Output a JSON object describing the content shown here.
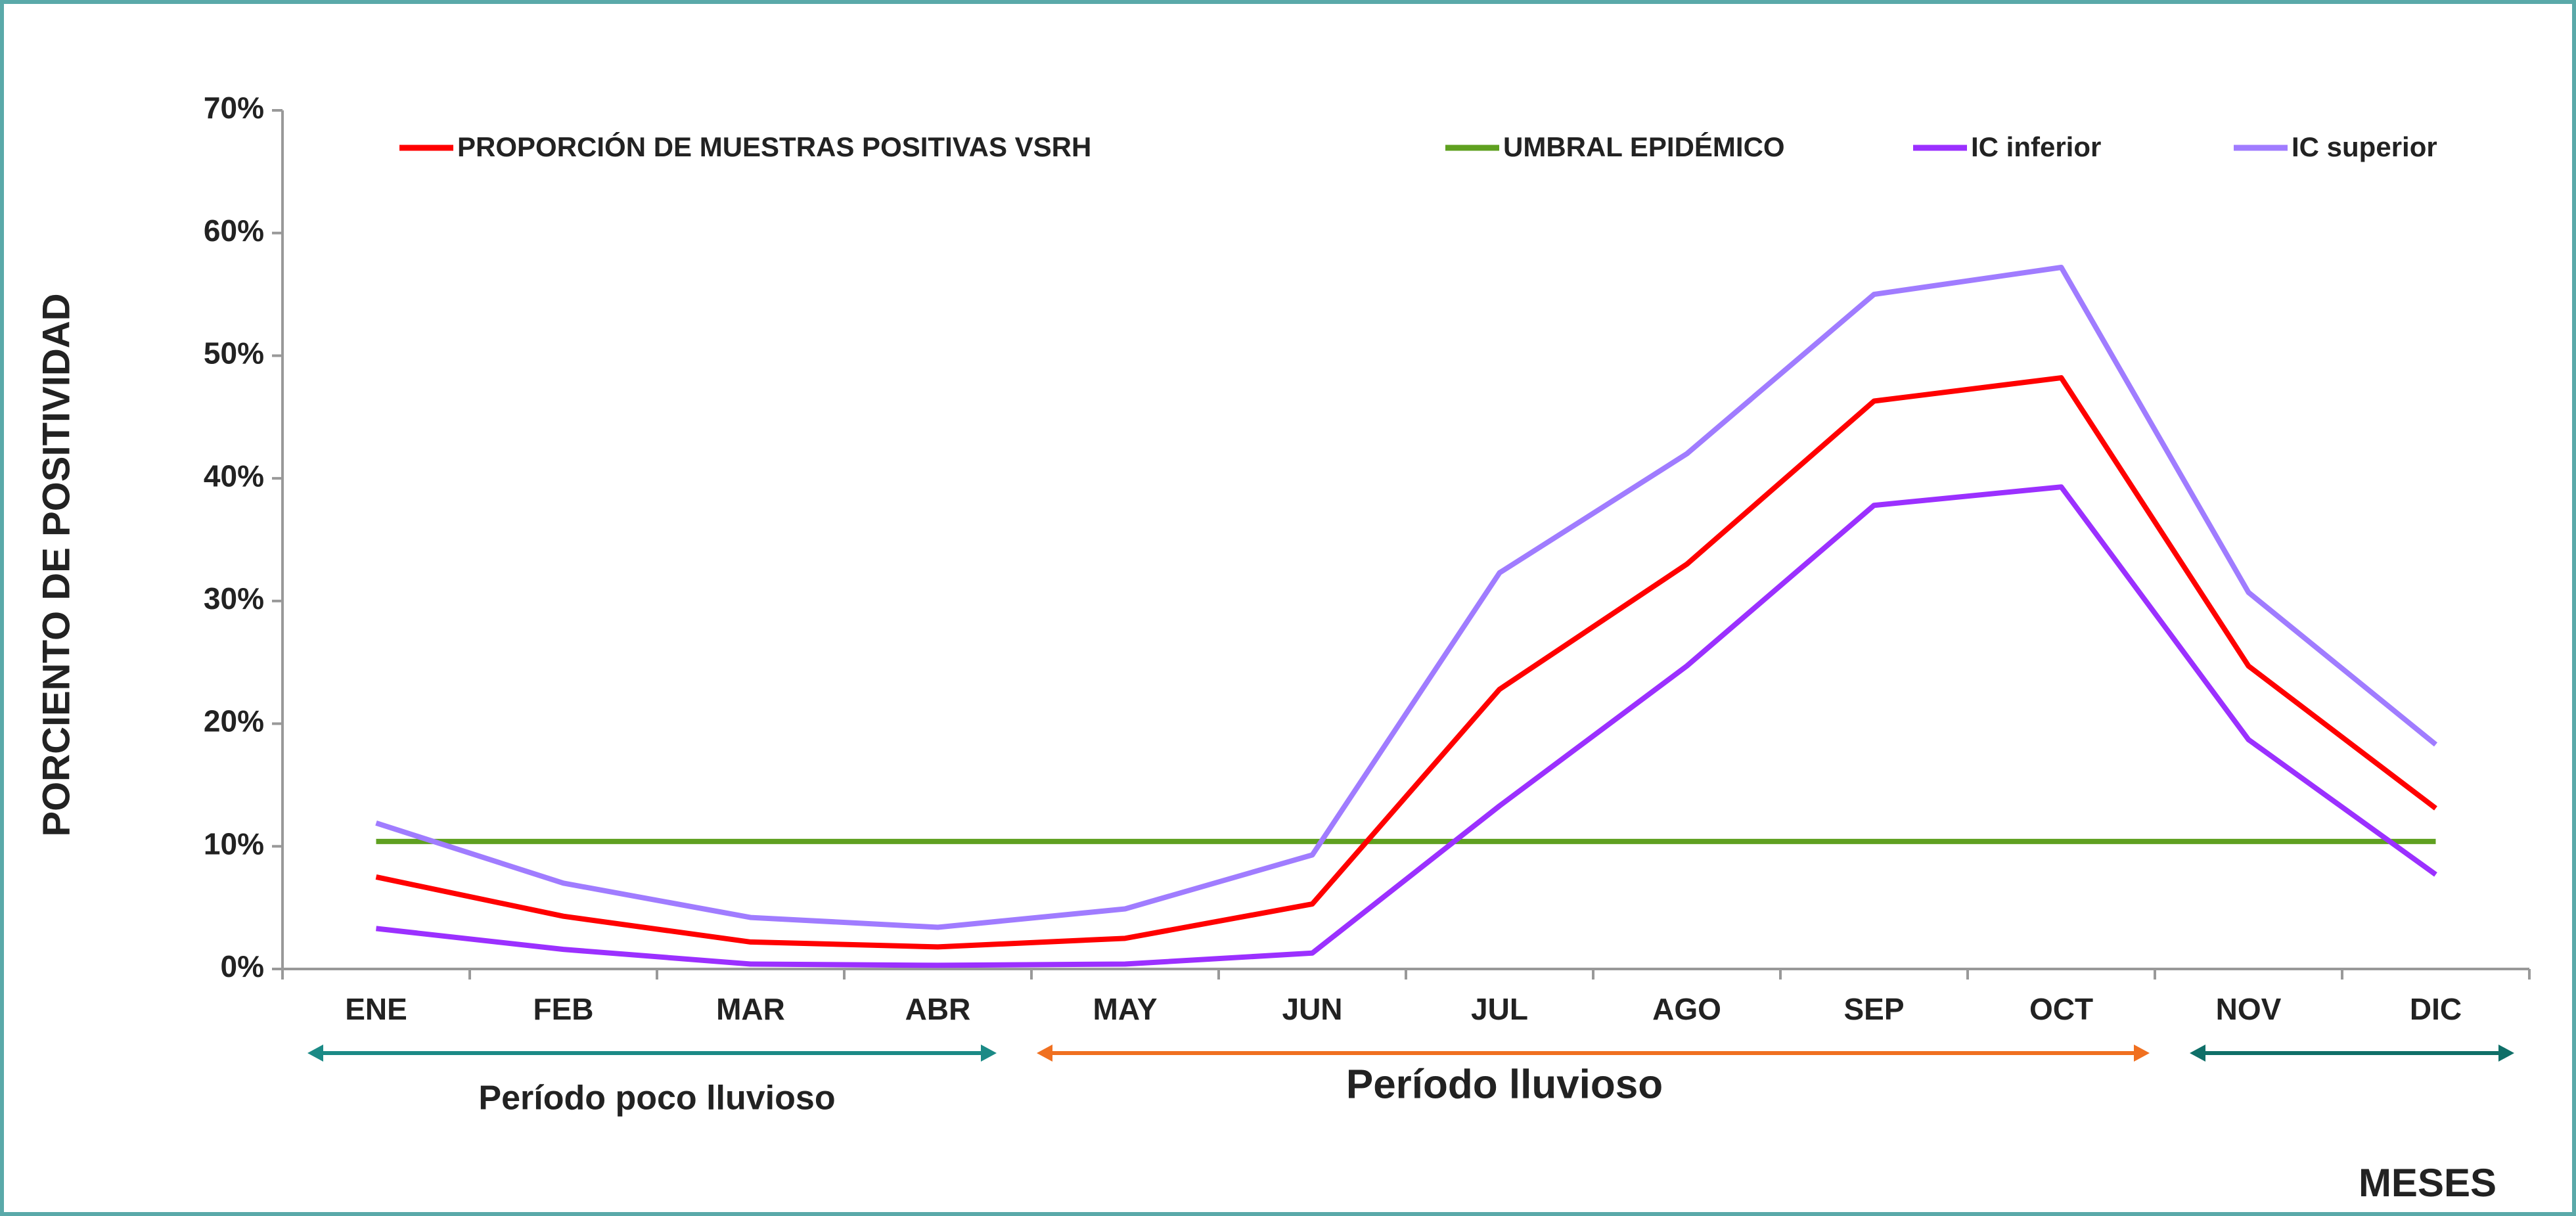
{
  "chart_data": {
    "type": "line",
    "x_label": "MESES",
    "y_label": "PORCIENTO DE POSITIVIDAD",
    "categories": [
      "ENE",
      "FEB",
      "MAR",
      "ABR",
      "MAY",
      "JUN",
      "JUL",
      "AGO",
      "SEP",
      "OCT",
      "NOV",
      "DIC"
    ],
    "series": [
      {
        "name": "PROPORCIÓN DE MUESTRAS POSITIVAS VSRH",
        "color": "#ff0000",
        "values": [
          7.5,
          4.3,
          2.2,
          1.8,
          2.5,
          5.3,
          22.8,
          33,
          46.3,
          48.2,
          24.7,
          13.1
        ]
      },
      {
        "name": "UMBRAL EPIDÉMICO",
        "color": "#5fa020",
        "values": [
          10.4,
          10.4,
          10.4,
          10.4,
          10.4,
          10.4,
          10.4,
          10.4,
          10.4,
          10.4,
          10.4,
          10.4
        ]
      },
      {
        "name": "IC inferior",
        "color": "#9b30ff",
        "values": [
          3.3,
          1.6,
          0.4,
          0.3,
          0.4,
          1.3,
          13.3,
          24.7,
          37.8,
          39.3,
          18.7,
          7.7
        ]
      },
      {
        "name": "IC superior",
        "color": "#a07cff",
        "values": [
          11.9,
          7,
          4.2,
          3.4,
          4.9,
          9.3,
          32.3,
          42,
          55,
          57.2,
          30.7,
          18.3
        ]
      }
    ],
    "ylim": [
      0,
      70
    ],
    "yticks": [
      {
        "value": 0,
        "label": "0%"
      },
      {
        "value": 10,
        "label": "10%"
      },
      {
        "value": 20,
        "label": "20%"
      },
      {
        "value": 30,
        "label": "30%"
      },
      {
        "value": 40,
        "label": "40%"
      },
      {
        "value": 50,
        "label": "50%"
      },
      {
        "value": 60,
        "label": "60%"
      },
      {
        "value": 70,
        "label": "70%"
      }
    ],
    "annotations": [
      "Período poco lluvioso",
      "Período lluvioso"
    ],
    "grid": false
  }
}
